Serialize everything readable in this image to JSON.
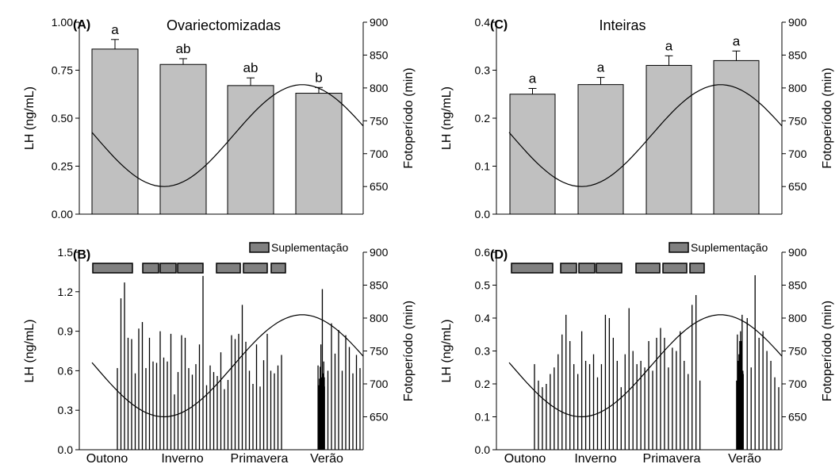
{
  "chart_data": [
    {
      "panel": "(A)",
      "type": "bar",
      "title": "Ovariectomizadas",
      "ylabel": "LH (ng/mL)",
      "y2label": "Fotoperíodo (min)",
      "ylim": [
        0,
        1.0
      ],
      "yticks": [
        "0.00",
        "0.25",
        "0.50",
        "0.75",
        "1.00"
      ],
      "y2lim": [
        608,
        900
      ],
      "y2ticks": [
        "650",
        "700",
        "750",
        "800",
        "850",
        "900"
      ],
      "categories": [
        "Outono",
        "Inverno",
        "Primavera",
        "Verão"
      ],
      "values": [
        0.86,
        0.78,
        0.67,
        0.63
      ],
      "errors": [
        0.05,
        0.03,
        0.04,
        0.03
      ],
      "letters": [
        "a",
        "ab",
        "ab",
        "b"
      ]
    },
    {
      "panel": "(C)",
      "type": "bar",
      "title": "Inteiras",
      "ylabel": "LH (ng/mL)",
      "y2label": "Fotoperíodo (min)",
      "ylim": [
        0,
        0.4
      ],
      "yticks": [
        "0.0",
        "0.1",
        "0.2",
        "0.3",
        "0.4"
      ],
      "y2lim": [
        608,
        900
      ],
      "y2ticks": [
        "650",
        "700",
        "750",
        "800",
        "850",
        "900"
      ],
      "categories": [
        "Outono",
        "Inverno",
        "Primavera",
        "Verão"
      ],
      "values": [
        0.25,
        0.27,
        0.31,
        0.32
      ],
      "errors": [
        0.012,
        0.015,
        0.02,
        0.02
      ],
      "letters": [
        "a",
        "a",
        "a",
        "a"
      ]
    },
    {
      "panel": "(B)",
      "type": "bar",
      "ylabel": "LH (ng/mL)",
      "y2label": "Fotoperíodo (min)",
      "ylim": [
        0,
        1.5
      ],
      "yticks": [
        "0.0",
        "0.3",
        "0.6",
        "0.9",
        "1.2",
        "1.5"
      ],
      "y2lim": [
        600,
        900
      ],
      "y2ticks": [
        "650",
        "700",
        "750",
        "800",
        "850",
        "900"
      ],
      "legend": "Suplementação",
      "xlabels": [
        "Outono",
        "Inverno",
        "Primavera",
        "Verão"
      ],
      "values": [
        0.62,
        1.15,
        1.27,
        0.85,
        0.84,
        0.58,
        0.92,
        0.97,
        0.62,
        0.85,
        0.67,
        0.66,
        0.9,
        0.7,
        0.67,
        0.88,
        0.42,
        0.59,
        0.87,
        0.85,
        0.62,
        0.57,
        0.65,
        0.8,
        1.32,
        0.49,
        0.64,
        0.59,
        0.56,
        0.74,
        0.46,
        0.53,
        0.87,
        0.84,
        0.88,
        1.1,
        0.82,
        0.6,
        0.5,
        0.8,
        0.48,
        0.68,
        0.88,
        0.6,
        0.58,
        0.64,
        0.72,
        0.64,
        0.49,
        0.54,
        0.63,
        0.8,
        0.55,
        1.22,
        0.58,
        0.67,
        0.48,
        0.48,
        0.55,
        0.6,
        0.96,
        0.73,
        0.91,
        0.6,
        0.87,
        0.78,
        0.58,
        0.72,
        0.62
      ],
      "photoperiod_min": [
        728,
        738,
        748,
        758,
        769,
        780,
        791,
        801,
        808,
        811,
        811,
        809,
        804,
        797,
        788,
        777
      ],
      "photoperiod_note": "sinusoidal curve"
    },
    {
      "panel": "(D)",
      "type": "bar",
      "ylabel": "LH (ng/mL)",
      "y2label": "Fotoperíodo (min)",
      "ylim": [
        0,
        0.6
      ],
      "yticks": [
        "0.0",
        "0.1",
        "0.2",
        "0.3",
        "0.4",
        "0.5",
        "0.6"
      ],
      "y2lim": [
        600,
        900
      ],
      "y2ticks": [
        "650",
        "700",
        "750",
        "800",
        "850",
        "900"
      ],
      "legend": "Suplementação",
      "xlabels": [
        "Outono",
        "Inverno",
        "Primavera",
        "Verão"
      ],
      "values": [
        0.26,
        0.21,
        0.19,
        0.2,
        0.23,
        0.25,
        0.29,
        0.35,
        0.41,
        0.33,
        0.26,
        0.23,
        0.36,
        0.27,
        0.26,
        0.29,
        0.22,
        0.26,
        0.41,
        0.4,
        0.34,
        0.27,
        0.19,
        0.29,
        0.43,
        0.3,
        0.26,
        0.27,
        0.25,
        0.33,
        0.24,
        0.34,
        0.37,
        0.34,
        0.25,
        0.31,
        0.3,
        0.36,
        0.27,
        0.23,
        0.44,
        0.47,
        0.21,
        0.21,
        0.35,
        0.27,
        0.29,
        0.33,
        0.36,
        0.33,
        0.41,
        0.24,
        0.22,
        0.23,
        0.4,
        0.25,
        0.53,
        0.34,
        0.36,
        0.3,
        0.27,
        0.22,
        0.19
      ],
      "photoperiod_min": [
        728,
        718,
        705,
        690,
        676,
        665,
        656,
        652,
        652,
        657,
        666,
        679,
        695,
        713,
        733,
        754,
        772,
        787,
        797,
        803,
        805,
        802,
        794,
        782,
        767,
        748
      ]
    }
  ]
}
